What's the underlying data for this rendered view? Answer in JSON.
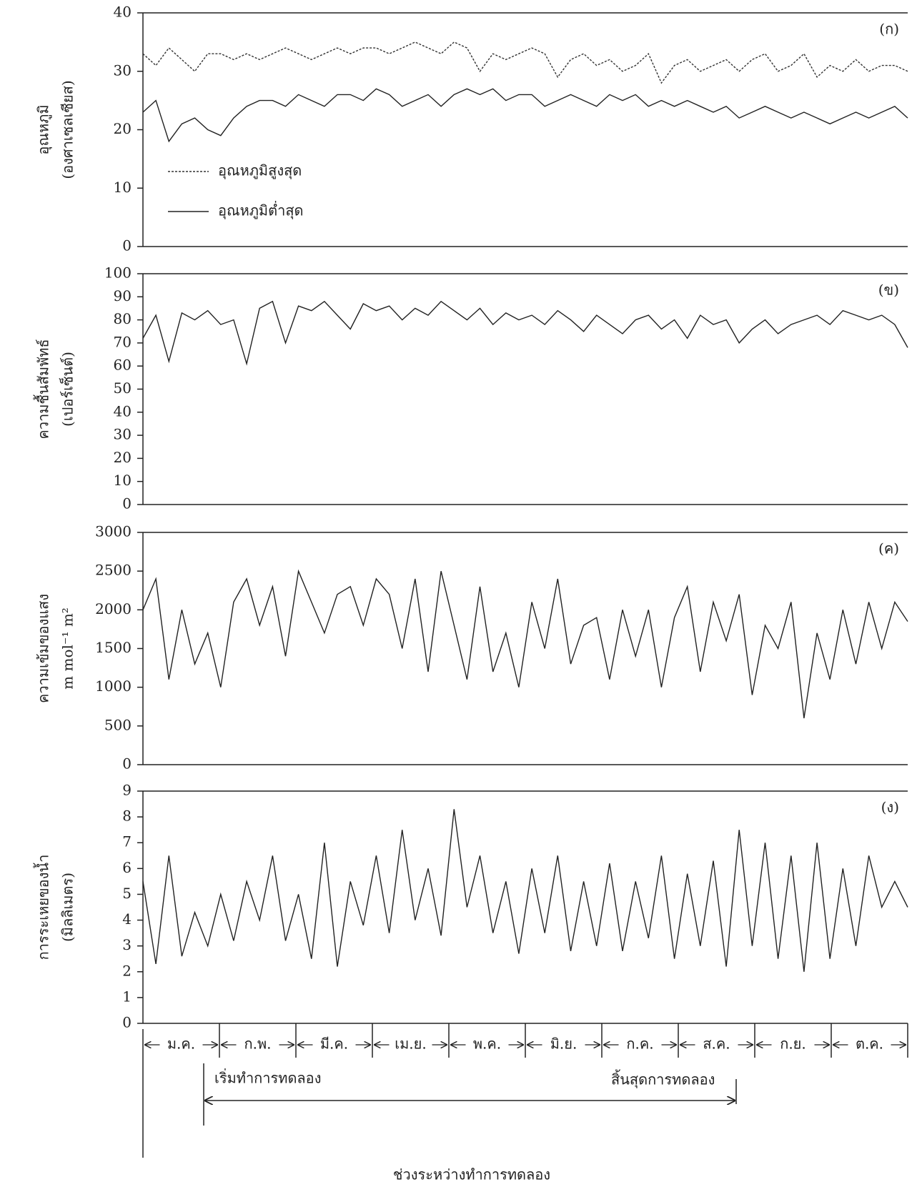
{
  "chart_data": [
    {
      "type": "line",
      "tag": "(ก)",
      "ylabel": [
        "อุณหภูมิ",
        "(องศาเซลเซียส)"
      ],
      "ylim": [
        0,
        40
      ],
      "yticks": [
        0,
        10,
        20,
        30,
        40
      ],
      "legend": "upper left",
      "series": [
        {
          "name": "อุณหภูมิสูงสุด",
          "color": "#333333",
          "line_style": "dotted",
          "values": [
            33,
            31,
            34,
            32,
            30,
            33,
            33,
            32,
            33,
            32,
            33,
            34,
            33,
            32,
            33,
            34,
            33,
            34,
            34,
            33,
            34,
            35,
            34,
            33,
            35,
            34,
            30,
            33,
            32,
            33,
            34,
            33,
            29,
            32,
            33,
            31,
            32,
            30,
            31,
            33,
            28,
            31,
            32,
            30,
            31,
            32,
            30,
            32,
            33,
            30,
            31,
            33,
            29,
            31,
            30,
            32,
            30,
            31,
            31,
            30
          ]
        },
        {
          "name": "อุณหภูมิต่ำสุด",
          "color": "#222222",
          "line_style": "solid",
          "values": [
            23,
            25,
            18,
            21,
            22,
            20,
            19,
            22,
            24,
            25,
            25,
            24,
            26,
            25,
            24,
            26,
            26,
            25,
            27,
            26,
            24,
            25,
            26,
            24,
            26,
            27,
            26,
            27,
            25,
            26,
            26,
            24,
            25,
            26,
            25,
            24,
            26,
            25,
            26,
            24,
            25,
            24,
            25,
            24,
            23,
            24,
            22,
            23,
            24,
            23,
            22,
            23,
            22,
            21,
            22,
            23,
            22,
            23,
            24,
            22
          ]
        }
      ]
    },
    {
      "type": "line",
      "tag": "(ข)",
      "ylabel": [
        "ความชื้นสัมพัทธ์",
        "(เปอร์เซ็นต์)"
      ],
      "ylim": [
        0,
        100
      ],
      "yticks": [
        0,
        10,
        20,
        30,
        40,
        50,
        60,
        70,
        80,
        90,
        100
      ],
      "series": [
        {
          "color": "#222222",
          "line_style": "solid",
          "values": [
            72,
            82,
            62,
            83,
            80,
            84,
            78,
            80,
            61,
            85,
            88,
            70,
            86,
            84,
            88,
            82,
            76,
            87,
            84,
            86,
            80,
            85,
            82,
            88,
            84,
            80,
            85,
            78,
            83,
            80,
            82,
            78,
            84,
            80,
            75,
            82,
            78,
            74,
            80,
            82,
            76,
            80,
            72,
            82,
            78,
            80,
            70,
            76,
            80,
            74,
            78,
            80,
            82,
            78,
            84,
            82,
            80,
            82,
            78,
            68
          ]
        }
      ]
    },
    {
      "type": "line",
      "tag": "(ค)",
      "ylabel": [
        "ความเข้มของแสง",
        "m mol⁻¹ m²"
      ],
      "ylim": [
        0,
        3000
      ],
      "yticks": [
        0,
        500,
        1000,
        1500,
        2000,
        2500,
        3000
      ],
      "series": [
        {
          "color": "#222222",
          "line_style": "solid",
          "values": [
            2000,
            2400,
            1100,
            2000,
            1300,
            1700,
            1000,
            2100,
            2400,
            1800,
            2300,
            1400,
            2500,
            2100,
            1700,
            2200,
            2300,
            1800,
            2400,
            2200,
            1500,
            2400,
            1200,
            2500,
            1800,
            1100,
            2300,
            1200,
            1700,
            1000,
            2100,
            1500,
            2400,
            1300,
            1800,
            1900,
            1100,
            2000,
            1400,
            2000,
            1000,
            1900,
            2300,
            1200,
            2100,
            1600,
            2200,
            900,
            1800,
            1500,
            2100,
            600,
            1700,
            1100,
            2000,
            1300,
            2100,
            1500,
            2100,
            1850
          ]
        }
      ]
    },
    {
      "type": "line",
      "tag": "(ง)",
      "ylabel": [
        "การระเหยของน้ำ",
        "(มิลลิเมตร)"
      ],
      "ylim": [
        0,
        9
      ],
      "yticks": [
        0,
        1,
        2,
        3,
        4,
        5,
        6,
        7,
        8,
        9
      ],
      "series": [
        {
          "color": "#222222",
          "line_style": "solid",
          "values": [
            5.5,
            2.3,
            6.5,
            2.6,
            4.3,
            3.0,
            5.0,
            3.2,
            5.5,
            4.0,
            6.5,
            3.2,
            5.0,
            2.5,
            7.0,
            2.2,
            5.5,
            3.8,
            6.5,
            3.5,
            7.5,
            4.0,
            6.0,
            3.4,
            8.3,
            4.5,
            6.5,
            3.5,
            5.5,
            2.7,
            6.0,
            3.5,
            6.5,
            2.8,
            5.5,
            3.0,
            6.2,
            2.8,
            5.5,
            3.3,
            6.5,
            2.5,
            5.8,
            3.0,
            6.3,
            2.2,
            7.5,
            3.0,
            7.0,
            2.5,
            6.5,
            2.0,
            7.0,
            2.5,
            6.0,
            3.0,
            6.5,
            4.5,
            5.5,
            4.5
          ]
        }
      ]
    }
  ],
  "months": [
    "ม.ค.",
    "ก.พ.",
    "มี.ค.",
    "เม.ย.",
    "พ.ค.",
    "มิ.ย.",
    "ก.ค.",
    "ส.ค.",
    "ก.ย.",
    "ต.ค."
  ],
  "annotations": {
    "start": "เริ่มทำการทดลอง",
    "end": "สิ้นสุดการทดลอง",
    "period": "ช่วงระหว่างทำการทดลอง"
  }
}
